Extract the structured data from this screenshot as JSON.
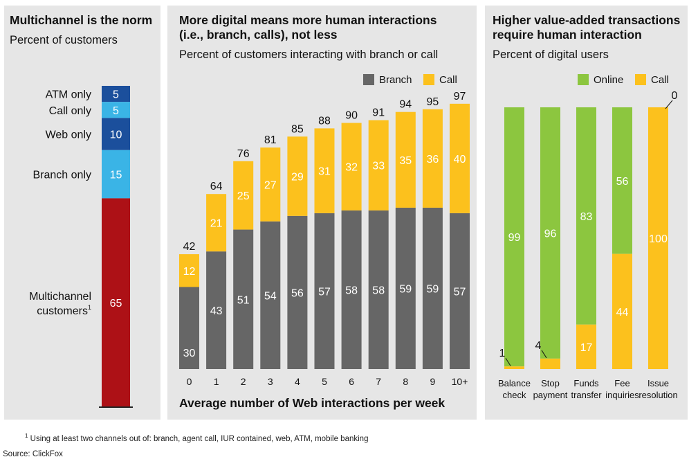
{
  "colors": {
    "atm": "#1b4f9c",
    "call_only": "#3ab4e6",
    "web": "#1b4f9c",
    "branch_only": "#3ab4e6",
    "multichannel": "#ad1116",
    "branch": "#666666",
    "call": "#fcc11d",
    "online": "#8cc63f",
    "panel_bg": "#e6e6e6"
  },
  "panels": [
    {
      "title": "Multichannel is the norm",
      "subtitle": "Percent of customers"
    },
    {
      "title": "More digital means more human interactions (i.e., branch, calls), not less",
      "title_lines": [
        "More digital means more human interactions",
        "(i.e., branch, calls), not less"
      ],
      "subtitle": "Percent of customers interacting with branch or call"
    },
    {
      "title": "Higher value-added transactions require human interaction",
      "title_lines": [
        "Higher value-added transactions",
        "require human interaction"
      ],
      "subtitle": "Percent of digital users"
    }
  ],
  "chart_data": [
    {
      "type": "bar",
      "stacked": true,
      "title": "Multichannel is the norm",
      "subtitle": "Percent of customers",
      "segments": [
        {
          "name": "ATM only",
          "value": 5,
          "color": "#1b4f9c"
        },
        {
          "name": "Call only",
          "value": 5,
          "color": "#3ab4e6"
        },
        {
          "name": "Web only",
          "value": 10,
          "color": "#1b4f9c"
        },
        {
          "name": "Branch only",
          "value": 15,
          "color": "#3ab4e6"
        },
        {
          "name": "Multichannel customers",
          "name_lines": [
            "Multichannel",
            "customers"
          ],
          "footnote_marker": "1",
          "value": 65,
          "color": "#ad1116"
        }
      ]
    },
    {
      "type": "bar",
      "stacked": true,
      "title": "More digital means more human interactions (i.e., branch, calls), not less",
      "subtitle": "Percent of customers interacting with branch or call",
      "xlabel": "Average number of Web interactions per week",
      "categories": [
        "0",
        "1",
        "2",
        "3",
        "4",
        "5",
        "6",
        "7",
        "8",
        "9",
        "10+"
      ],
      "totals": [
        42,
        64,
        76,
        81,
        85,
        88,
        90,
        91,
        94,
        95,
        97
      ],
      "series": [
        {
          "name": "Branch",
          "color": "#666666",
          "values": [
            30,
            43,
            51,
            54,
            56,
            57,
            58,
            58,
            59,
            59,
            57
          ]
        },
        {
          "name": "Call",
          "color": "#fcc11d",
          "values": [
            12,
            21,
            25,
            27,
            29,
            31,
            32,
            33,
            35,
            36,
            40
          ]
        }
      ],
      "legend": "top-right",
      "ylim": [
        0,
        100
      ]
    },
    {
      "type": "bar",
      "stacked": true,
      "title": "Higher value-added transactions require human interaction",
      "subtitle": "Percent of digital users",
      "categories": [
        "Balance check",
        "Stop payment",
        "Funds transfer",
        "Fee inquiries",
        "Issue resolution"
      ],
      "category_lines": [
        [
          "Balance",
          "check"
        ],
        [
          "Stop",
          "payment"
        ],
        [
          "Funds",
          "transfer"
        ],
        [
          "Fee",
          "inquiries"
        ],
        [
          "Issue",
          "resolution"
        ]
      ],
      "series": [
        {
          "name": "Call",
          "color": "#fcc11d",
          "values": [
            1,
            4,
            17,
            44,
            100
          ]
        },
        {
          "name": "Online",
          "color": "#8cc63f",
          "values": [
            99,
            96,
            83,
            56,
            0
          ]
        }
      ],
      "legend": "top-right",
      "ylim": [
        0,
        100
      ]
    }
  ],
  "footnote": {
    "marker": "1",
    "text": "Using at least two channels out of: branch, agent call, IUR contained, web, ATM, mobile banking"
  },
  "source": "Source: ClickFox"
}
